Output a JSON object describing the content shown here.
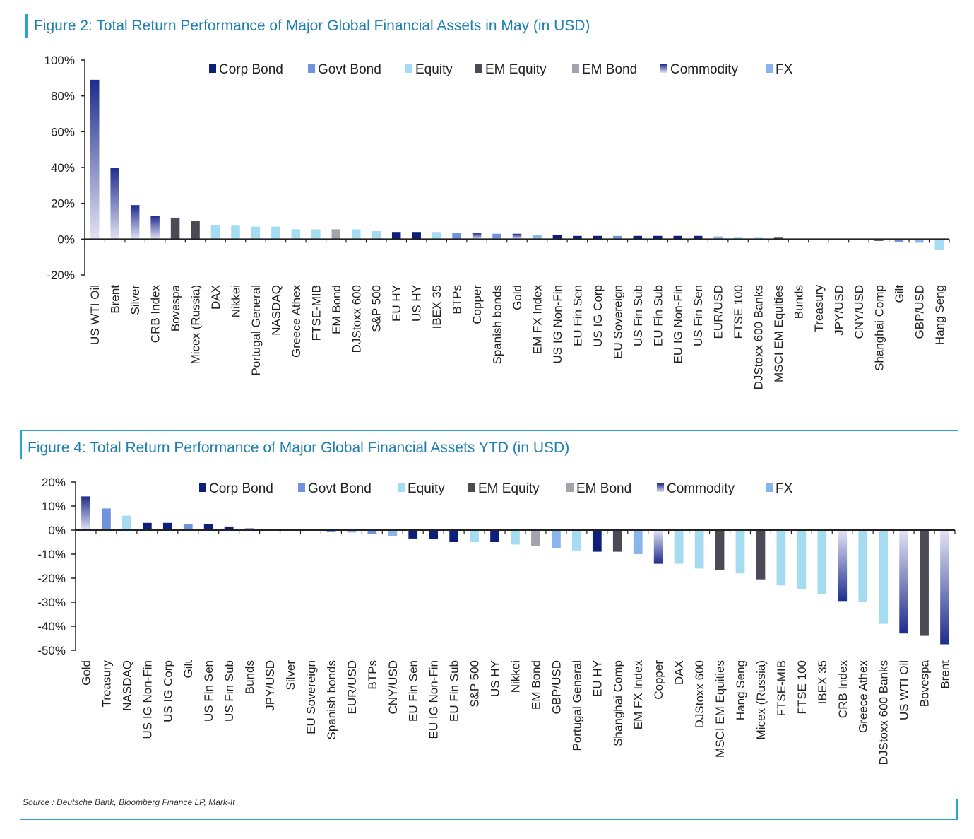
{
  "source_note": "Source : Deutsche Bank, Bloomberg Finance LP, Mark-It",
  "colors": {
    "Corp Bond": "#0d1f7a",
    "Govt Bond": "#6f93dc",
    "Equity": "#a6dcf2",
    "EM Equity": "#4a4b55",
    "EM Bond": "#a3a3ab",
    "Commodity": "#1e2d8c",
    "FX": "#8ab4ec",
    "commodity_light": "#e3e3f4",
    "accent": "#1f7fb0",
    "rule": "#2aa3d0"
  },
  "chart_data": [
    {
      "type": "bar",
      "title": "Figure 2: Total Return Performance of Major Global Financial Assets in May (in USD)",
      "yunit": "%",
      "ylim": [
        -20,
        100
      ],
      "yticks": [
        100,
        80,
        60,
        40,
        20,
        0,
        -20
      ],
      "ytick_labels": [
        "100%",
        "80%",
        "60%",
        "40%",
        "20%",
        "0%",
        "-20%"
      ],
      "legend_placement": "top",
      "legend": [
        "Corp Bond",
        "Govt Bond",
        "Equity",
        "EM Equity",
        "EM Bond",
        "Commodity",
        "FX"
      ],
      "categories": [
        "US WTI Oil",
        "Brent",
        "Silver",
        "CRB Index",
        "Bovespa",
        "Micex (Russia)",
        "DAX",
        "Nikkei",
        "Portugal General",
        "NASDAQ",
        "Greece Athex",
        "FTSE-MIB",
        "EM Bond",
        "DJStoxx 600",
        "S&P 500",
        "EU HY",
        "US HY",
        "IBEX 35",
        "BTPs",
        "Copper",
        "Spanish bonds",
        "Gold",
        "EM FX Index",
        "US IG Non-Fin",
        "EU Fin Sen",
        "US IG Corp",
        "EU Sovereign",
        "US Fin Sub",
        "EU Fin Sub",
        "EU IG Non-Fin",
        "US Fin Sen",
        "EUR/USD",
        "FTSE 100",
        "DJStoxx 600 Banks",
        "MSCI EM Equities",
        "Bunds",
        "Treasury",
        "JPY/USD",
        "CNY/USD",
        "Shanghai Comp",
        "Gilt",
        "GBP/USD",
        "Hang Seng"
      ],
      "values": [
        89,
        40,
        19,
        13,
        12,
        10,
        8,
        7.5,
        7,
        7,
        5.5,
        5.5,
        5.5,
        5.5,
        4.5,
        4,
        4,
        4,
        3.5,
        3.5,
        3,
        3,
        2.5,
        2.3,
        1.8,
        1.8,
        1.8,
        1.8,
        1.8,
        1.8,
        1.8,
        1.5,
        1.2,
        0.8,
        0.8,
        0.3,
        0.2,
        0,
        -0.5,
        -1,
        -1.5,
        -2,
        -6
      ],
      "groups": [
        "Commodity",
        "Commodity",
        "Commodity",
        "Commodity",
        "EM Equity",
        "EM Equity",
        "Equity",
        "Equity",
        "Equity",
        "Equity",
        "Equity",
        "Equity",
        "EM Bond",
        "Equity",
        "Equity",
        "Corp Bond",
        "Corp Bond",
        "Equity",
        "Govt Bond",
        "Commodity",
        "Govt Bond",
        "Commodity",
        "FX",
        "Corp Bond",
        "Corp Bond",
        "Corp Bond",
        "Govt Bond",
        "Corp Bond",
        "Corp Bond",
        "Corp Bond",
        "Corp Bond",
        "FX",
        "Equity",
        "Equity",
        "EM Equity",
        "Govt Bond",
        "Govt Bond",
        "FX",
        "FX",
        "EM Equity",
        "Govt Bond",
        "FX",
        "Equity"
      ]
    },
    {
      "type": "bar",
      "title": "Figure 4: Total Return Performance of Major Global Financial Assets YTD (in USD)",
      "yunit": "%",
      "ylim": [
        -50,
        20
      ],
      "yticks": [
        20,
        10,
        0,
        -10,
        -20,
        -30,
        -40,
        -50
      ],
      "ytick_labels": [
        "20%",
        "10%",
        "0%",
        "-10%",
        "-20%",
        "-30%",
        "-40%",
        "-50%"
      ],
      "legend_placement": "top",
      "legend": [
        "Corp Bond",
        "Govt Bond",
        "Equity",
        "EM Equity",
        "EM Bond",
        "Commodity",
        "FX"
      ],
      "categories": [
        "Gold",
        "Treasury",
        "NASDAQ",
        "US IG Non-Fin",
        "US IG Corp",
        "Gilt",
        "US Fin Sen",
        "US Fin Sub",
        "Bunds",
        "JPY/USD",
        "Silver",
        "EU Sovereign",
        "Spanish bonds",
        "EUR/USD",
        "BTPs",
        "CNY/USD",
        "EU Fin Sen",
        "EU IG Non-Fin",
        "EU Fin Sub",
        "S&P 500",
        "US HY",
        "Nikkei",
        "EM Bond",
        "GBP/USD",
        "Portugal General",
        "EU HY",
        "Shanghai Comp",
        "EM FX Index",
        "Copper",
        "DAX",
        "DJStoxx 600",
        "MSCI EM Equities",
        "Hang Seng",
        "Micex (Russia)",
        "FTSE-MIB",
        "FTSE 100",
        "IBEX 35",
        "CRB Index",
        "Greece Athex",
        "DJStoxx 600 Banks",
        "US WTI Oil",
        "Bovespa",
        "Brent"
      ],
      "values": [
        14,
        9,
        6,
        3,
        3,
        2.5,
        2.5,
        1.5,
        0.8,
        0.5,
        0,
        -0.3,
        -0.8,
        -1,
        -1.5,
        -2.5,
        -3.5,
        -3.8,
        -5,
        -5,
        -5,
        -6,
        -6.5,
        -7.5,
        -8.5,
        -9,
        -9,
        -10,
        -14,
        -14,
        -16,
        -16.5,
        -18,
        -20.5,
        -23,
        -24.5,
        -26.5,
        -29.5,
        -30,
        -39,
        -43,
        -44,
        -47.5
      ],
      "groups": [
        "Commodity",
        "Govt Bond",
        "Equity",
        "Corp Bond",
        "Corp Bond",
        "Govt Bond",
        "Corp Bond",
        "Corp Bond",
        "Govt Bond",
        "FX",
        "Commodity",
        "Govt Bond",
        "Govt Bond",
        "FX",
        "Govt Bond",
        "FX",
        "Corp Bond",
        "Corp Bond",
        "Corp Bond",
        "Equity",
        "Corp Bond",
        "Equity",
        "EM Bond",
        "FX",
        "Equity",
        "Corp Bond",
        "EM Equity",
        "FX",
        "Commodity",
        "Equity",
        "Equity",
        "EM Equity",
        "Equity",
        "EM Equity",
        "Equity",
        "Equity",
        "Equity",
        "Commodity",
        "Equity",
        "Equity",
        "Commodity",
        "EM Equity",
        "Commodity"
      ]
    }
  ]
}
